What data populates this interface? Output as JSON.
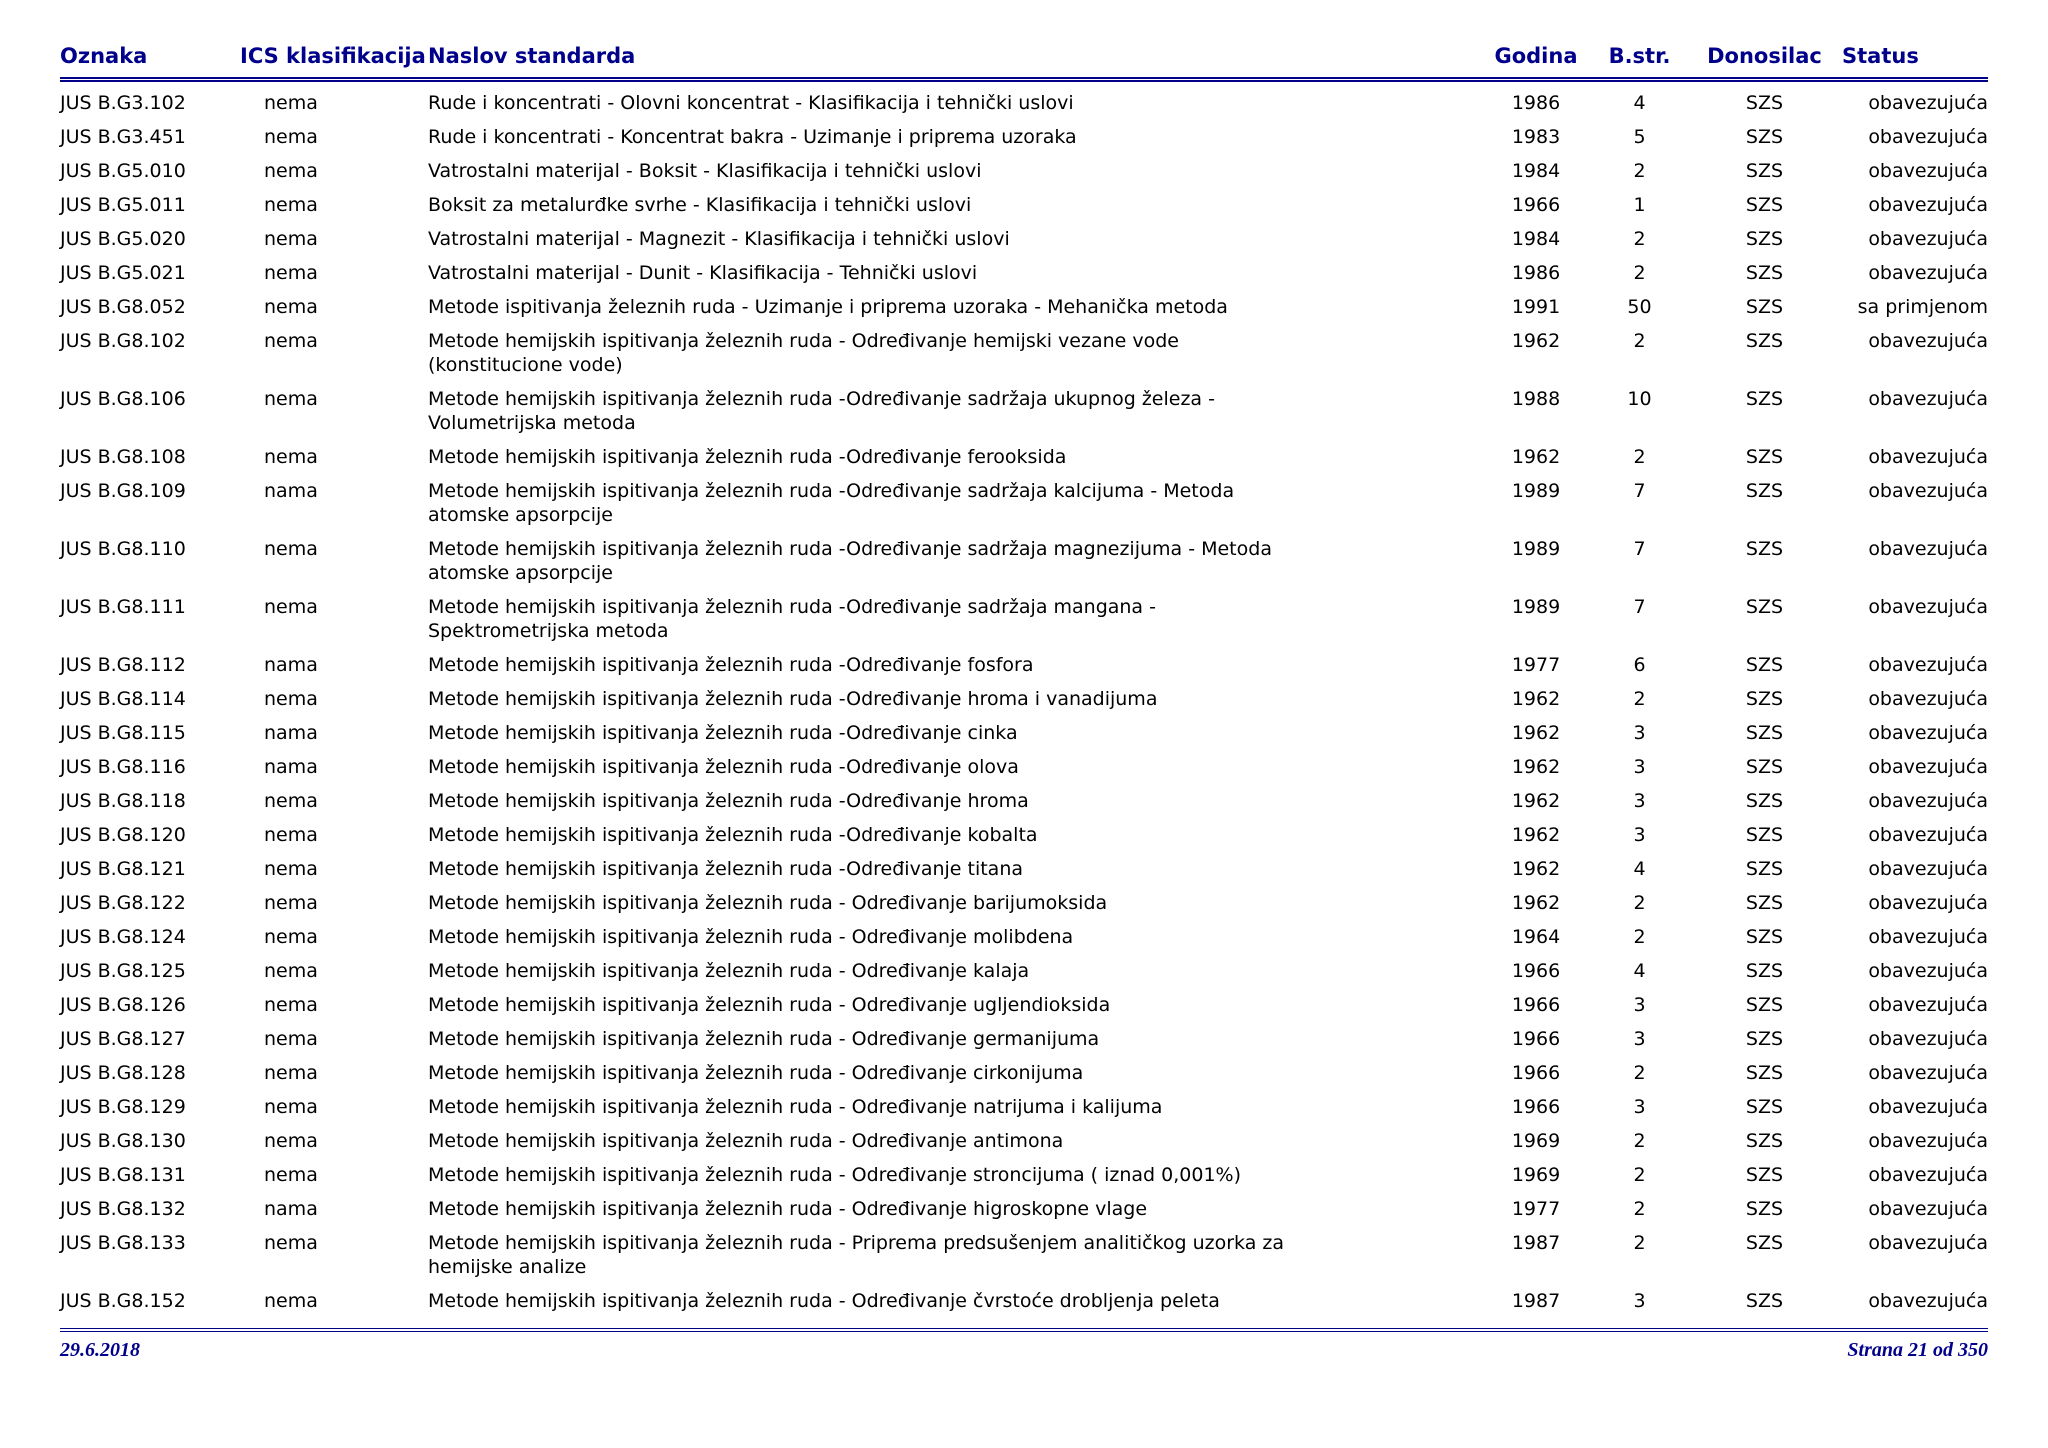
{
  "colors": {
    "navy": "#00008B",
    "text": "#000000",
    "background": "#ffffff"
  },
  "table": {
    "headers": [
      "Oznaka",
      "ICS klasifikacija",
      "Naslov standarda",
      "Godina",
      "B.str.",
      "Donosilac",
      "Status"
    ],
    "rows": [
      [
        "JUS B.G3.102",
        "nema",
        "Rude i koncentrati - Olovni koncentrat - Klasifikacija i tehnički uslovi",
        "1986",
        "4",
        "SZS",
        "obavezujuća"
      ],
      [
        "JUS B.G3.451",
        "nema",
        "Rude i koncentrati - Koncentrat bakra - Uzimanje i priprema uzoraka",
        "1983",
        "5",
        "SZS",
        "obavezujuća"
      ],
      [
        "JUS B.G5.010",
        "nema",
        "Vatrostalni materijal - Boksit - Klasifikacija i tehnički uslovi",
        "1984",
        "2",
        "SZS",
        "obavezujuća"
      ],
      [
        "JUS B.G5.011",
        "nema",
        "Boksit za metalurđke svrhe - Klasifikacija i tehnički uslovi",
        "1966",
        "1",
        "SZS",
        "obavezujuća"
      ],
      [
        "JUS B.G5.020",
        "nema",
        "Vatrostalni materijal - Magnezit - Klasifikacija i tehnički uslovi",
        "1984",
        "2",
        "SZS",
        "obavezujuća"
      ],
      [
        "JUS B.G5.021",
        "nema",
        "Vatrostalni materijal - Dunit - Klasifikacija - Tehnički uslovi",
        "1986",
        "2",
        "SZS",
        "obavezujuća"
      ],
      [
        "JUS B.G8.052",
        "nema",
        "Metode ispitivanja železnih ruda - Uzimanje i priprema uzoraka - Mehanička metoda",
        "1991",
        "50",
        "SZS",
        "sa primjenom"
      ],
      [
        "JUS B.G8.102",
        "nema",
        "Metode hemijskih ispitivanja železnih ruda - Određivanje hemijski vezane vode (konstitucione vode)",
        "1962",
        "2",
        "SZS",
        "obavezujuća"
      ],
      [
        "JUS B.G8.106",
        "nema",
        "Metode hemijskih ispitivanja železnih ruda -Određivanje sadržaja ukupnog železa - Volumetrijska metoda",
        "1988",
        "10",
        "SZS",
        "obavezujuća"
      ],
      [
        "JUS B.G8.108",
        "nema",
        "Metode hemijskih ispitivanja železnih ruda -Određivanje ferooksida",
        "1962",
        "2",
        "SZS",
        "obavezujuća"
      ],
      [
        "JUS B.G8.109",
        "nama",
        "Metode hemijskih ispitivanja železnih ruda -Određivanje sadržaja kalcijuma - Metoda atomske apsorpcije",
        "1989",
        "7",
        "SZS",
        "obavezujuća"
      ],
      [
        "JUS B.G8.110",
        "nema",
        "Metode hemijskih ispitivanja železnih ruda -Određivanje sadržaja magnezijuma - Metoda atomske apsorpcije",
        "1989",
        "7",
        "SZS",
        "obavezujuća"
      ],
      [
        "JUS B.G8.111",
        "nema",
        "Metode hemijskih ispitivanja železnih ruda -Određivanje sadržaja mangana - Spektrometrijska metoda",
        "1989",
        "7",
        "SZS",
        "obavezujuća"
      ],
      [
        "JUS B.G8.112",
        "nama",
        "Metode hemijskih ispitivanja železnih ruda -Određivanje fosfora",
        "1977",
        "6",
        "SZS",
        "obavezujuća"
      ],
      [
        "JUS B.G8.114",
        "nema",
        "Metode hemijskih ispitivanja železnih ruda -Određivanje hroma i vanadijuma",
        "1962",
        "2",
        "SZS",
        "obavezujuća"
      ],
      [
        "JUS B.G8.115",
        "nama",
        "Metode hemijskih ispitivanja železnih ruda -Određivanje cinka",
        "1962",
        "3",
        "SZS",
        "obavezujuća"
      ],
      [
        "JUS B.G8.116",
        "nama",
        "Metode hemijskih ispitivanja železnih ruda -Određivanje olova",
        "1962",
        "3",
        "SZS",
        "obavezujuća"
      ],
      [
        "JUS B.G8.118",
        "nema",
        "Metode hemijskih ispitivanja železnih ruda -Određivanje hroma",
        "1962",
        "3",
        "SZS",
        "obavezujuća"
      ],
      [
        "JUS B.G8.120",
        "nema",
        "Metode hemijskih ispitivanja železnih ruda -Određivanje kobalta",
        "1962",
        "3",
        "SZS",
        "obavezujuća"
      ],
      [
        "JUS B.G8.121",
        "nema",
        "Metode hemijskih ispitivanja železnih ruda -Određivanje titana",
        "1962",
        "4",
        "SZS",
        "obavezujuća"
      ],
      [
        "JUS B.G8.122",
        "nema",
        "Metode hemijskih ispitivanja železnih ruda - Određivanje barijumoksida",
        "1962",
        "2",
        "SZS",
        "obavezujuća"
      ],
      [
        "JUS B.G8.124",
        "nema",
        "Metode hemijskih ispitivanja železnih ruda - Određivanje molibdena",
        "1964",
        "2",
        "SZS",
        "obavezujuća"
      ],
      [
        "JUS B.G8.125",
        "nema",
        "Metode hemijskih ispitivanja železnih ruda - Određivanje kalaja",
        "1966",
        "4",
        "SZS",
        "obavezujuća"
      ],
      [
        "JUS B.G8.126",
        "nema",
        "Metode hemijskih ispitivanja železnih ruda - Određivanje ugljendioksida",
        "1966",
        "3",
        "SZS",
        "obavezujuća"
      ],
      [
        "JUS B.G8.127",
        "nema",
        "Metode hemijskih ispitivanja železnih ruda - Određivanje germanijuma",
        "1966",
        "3",
        "SZS",
        "obavezujuća"
      ],
      [
        "JUS B.G8.128",
        "nema",
        "Metode hemijskih ispitivanja železnih ruda - Određivanje cirkonijuma",
        "1966",
        "2",
        "SZS",
        "obavezujuća"
      ],
      [
        "JUS B.G8.129",
        "nema",
        "Metode hemijskih ispitivanja železnih ruda - Određivanje natrijuma i kalijuma",
        "1966",
        "3",
        "SZS",
        "obavezujuća"
      ],
      [
        "JUS B.G8.130",
        "nema",
        "Metode hemijskih ispitivanja železnih ruda - Određivanje antimona",
        "1969",
        "2",
        "SZS",
        "obavezujuća"
      ],
      [
        "JUS B.G8.131",
        "nema",
        "Metode hemijskih ispitivanja železnih ruda - Određivanje stroncijuma ( iznad 0,001%)",
        "1969",
        "2",
        "SZS",
        "obavezujuća"
      ],
      [
        "JUS B.G8.132",
        "nama",
        "Metode hemijskih ispitivanja železnih ruda - Određivanje higroskopne vlage",
        "1977",
        "2",
        "SZS",
        "obavezujuća"
      ],
      [
        "JUS B.G8.133",
        "nema",
        "Metode hemijskih ispitivanja železnih ruda - Priprema predsušenjem analitičkog uzorka za hemijske analize",
        "1987",
        "2",
        "SZS",
        "obavezujuća"
      ],
      [
        "JUS B.G8.152",
        "nema",
        "Metode hemijskih ispitivanja železnih ruda - Određivanje čvrstoće drobljenja peleta",
        "1987",
        "3",
        "SZS",
        "obavezujuća"
      ]
    ]
  },
  "footer": {
    "date": "29.6.2018",
    "page": "Strana 21 od 350"
  }
}
